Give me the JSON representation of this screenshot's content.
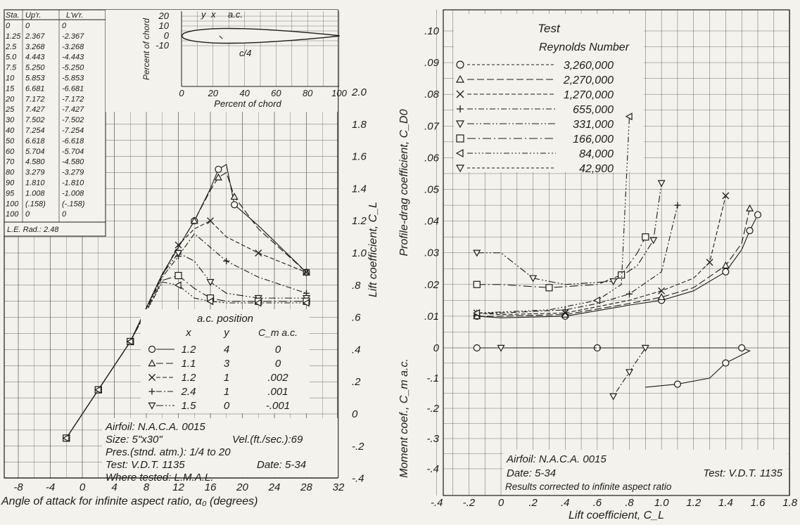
{
  "chart_data": [
    {
      "type": "line",
      "xlabel": "Angle of attack for infinite aspect ratio, α₀ (degrees)",
      "ylabel": "Lift coefficient, C_L",
      "x_ticks": [
        "-8",
        "-4",
        "0",
        "4",
        "8",
        "12",
        "16",
        "20",
        "24",
        "28",
        "32"
      ],
      "y_ticks": [
        "-.4",
        "-.2",
        "0",
        ".2",
        ".4",
        ".6",
        ".8",
        "1.0",
        "1.2",
        "1.4",
        "1.6",
        "1.8",
        "2.0"
      ],
      "xlim": [
        -8,
        32
      ],
      "ylim": [
        -0.4,
        2.0
      ],
      "ac_table": {
        "title": "a.c. position",
        "headers": [
          "x",
          "y",
          "C_m a.c."
        ],
        "rows": [
          [
            "1.2",
            "4",
            "0"
          ],
          [
            "1.1",
            "3",
            "0"
          ],
          [
            "1.2",
            "1",
            ".002"
          ],
          [
            "2.4",
            "1",
            ".001"
          ],
          [
            "1.5",
            "0",
            "-.001"
          ]
        ]
      },
      "notes": [
        "Airfoil: N.A.C.A. 0015",
        "Size: 5\"x30\"",
        "Vel.(ft./sec.):69",
        "Pres.(stnd. atm.): 1/4 to 20",
        "Test: V.D.T. 1135",
        "Date: 5-34",
        "Where tested: L.M.A.L."
      ],
      "series": [
        {
          "name": "3,260,000",
          "marker": "circle",
          "x": [
            -2,
            0,
            2,
            4,
            6,
            10,
            14,
            16,
            17,
            18,
            19,
            22,
            28
          ],
          "y": [
            -0.15,
            0,
            0.15,
            0.3,
            0.45,
            0.87,
            1.2,
            1.4,
            1.52,
            1.55,
            1.3,
            1.17,
            0.88
          ]
        },
        {
          "name": "2,270,000",
          "marker": "triangle-up",
          "x": [
            -2,
            0,
            2,
            4,
            6,
            10,
            14,
            16,
            17,
            18,
            19,
            22,
            28
          ],
          "y": [
            -0.15,
            0,
            0.15,
            0.3,
            0.45,
            0.87,
            1.2,
            1.39,
            1.47,
            1.5,
            1.35,
            1.15,
            0.88
          ]
        },
        {
          "name": "1,270,000",
          "marker": "x",
          "x": [
            -2,
            0,
            2,
            4,
            6,
            10,
            12,
            14,
            16,
            18,
            22,
            28
          ],
          "y": [
            -0.15,
            0,
            0.15,
            0.3,
            0.45,
            0.86,
            1.05,
            1.15,
            1.2,
            1.1,
            1.0,
            0.88
          ]
        },
        {
          "name": "655,000",
          "marker": "plus",
          "x": [
            -2,
            0,
            2,
            4,
            6,
            10,
            12,
            14,
            18,
            22,
            28
          ],
          "y": [
            -0.15,
            0,
            0.15,
            0.3,
            0.45,
            0.85,
            0.98,
            1.12,
            0.95,
            0.85,
            0.75
          ]
        },
        {
          "name": "331,000",
          "marker": "triangle-down",
          "x": [
            -2,
            0,
            2,
            4,
            6,
            10,
            12,
            14,
            16,
            18,
            22,
            28
          ],
          "y": [
            -0.15,
            0,
            0.15,
            0.3,
            0.45,
            0.87,
            1.0,
            0.95,
            0.82,
            0.75,
            0.72,
            0.72
          ]
        },
        {
          "name": "166,000",
          "marker": "square",
          "x": [
            -2,
            0,
            2,
            4,
            6,
            10,
            12,
            14,
            16,
            18,
            22,
            28
          ],
          "y": [
            -0.15,
            0,
            0.15,
            0.3,
            0.45,
            0.83,
            0.86,
            0.78,
            0.72,
            0.7,
            0.7,
            0.7
          ]
        },
        {
          "name": "84,000",
          "marker": "triangle-left",
          "x": [
            -2,
            0,
            2,
            4,
            6,
            10,
            12,
            14,
            16,
            18,
            22,
            28
          ],
          "y": [
            -0.15,
            0,
            0.15,
            0.3,
            0.45,
            0.82,
            0.8,
            0.72,
            0.7,
            0.69,
            0.69,
            0.69
          ]
        }
      ]
    },
    {
      "type": "line",
      "title": "Test",
      "legend_title": "Reynolds Number",
      "xlabel": "Lift coefficient, C_L",
      "ylabel": "Profile-drag coefficient, C_D0",
      "ylabel2": "Moment coef., C_m a.c.",
      "x_ticks": [
        "-.4",
        "-.2",
        "0",
        ".2",
        ".4",
        ".6",
        ".8",
        "1.0",
        "1.2",
        "1.4",
        "1.6",
        "1.8"
      ],
      "y_ticks": [
        ".10",
        ".09",
        ".08",
        ".07",
        ".06",
        ".05",
        ".04",
        ".03",
        ".02",
        ".01",
        "0",
        "-.1",
        "-.2",
        "-.3",
        "-.4"
      ],
      "xlim": [
        -0.4,
        1.8
      ],
      "ylim": [
        -0.4,
        0.1
      ],
      "legend": [
        {
          "marker": "circle",
          "label": "3,260,000"
        },
        {
          "marker": "triangle-up",
          "label": "2,270,000"
        },
        {
          "marker": "x",
          "label": "1,270,000"
        },
        {
          "marker": "plus",
          "label": "655,000"
        },
        {
          "marker": "triangle-down",
          "label": "331,000"
        },
        {
          "marker": "square",
          "label": "166,000"
        },
        {
          "marker": "triangle-left",
          "label": "84,000"
        },
        {
          "marker": "triangle-down",
          "label": "42,900"
        }
      ],
      "notes": [
        "Airfoil: N.A.C.A. 0015",
        "Date: 5-34",
        "Test: V.D.T. 1135",
        "Results corrected to infinite aspect ratio"
      ],
      "drag_series": [
        {
          "name": "3,260,000",
          "x": [
            -0.15,
            0,
            0.4,
            0.8,
            1.0,
            1.2,
            1.4,
            1.5,
            1.55,
            1.6
          ],
          "y": [
            0.01,
            0.0095,
            0.01,
            0.0135,
            0.015,
            0.018,
            0.024,
            0.031,
            0.037,
            0.042
          ]
        },
        {
          "name": "2,270,000",
          "x": [
            -0.15,
            0,
            0.4,
            0.8,
            1.0,
            1.2,
            1.4,
            1.5,
            1.55
          ],
          "y": [
            0.01,
            0.01,
            0.0105,
            0.014,
            0.016,
            0.019,
            0.026,
            0.033,
            0.044
          ]
        },
        {
          "name": "1,270,000",
          "x": [
            -0.15,
            0,
            0.4,
            0.8,
            1.0,
            1.2,
            1.3,
            1.4
          ],
          "y": [
            0.011,
            0.0105,
            0.011,
            0.015,
            0.018,
            0.022,
            0.027,
            0.048
          ]
        },
        {
          "name": "655,000",
          "x": [
            -0.15,
            0,
            0.4,
            0.6,
            0.8,
            1.0,
            1.1
          ],
          "y": [
            0.011,
            0.011,
            0.012,
            0.014,
            0.017,
            0.024,
            0.045
          ]
        },
        {
          "name": "331,000",
          "x": [
            -0.15,
            0,
            0.2,
            0.4,
            0.7,
            0.85,
            0.95,
            1.0
          ],
          "y": [
            0.03,
            0.03,
            0.022,
            0.02,
            0.021,
            0.026,
            0.034,
            0.052
          ]
        },
        {
          "name": "166,000",
          "x": [
            -0.15,
            0,
            0.3,
            0.6,
            0.75,
            0.85,
            0.9
          ],
          "y": [
            0.02,
            0.02,
            0.019,
            0.02,
            0.023,
            0.03,
            0.035
          ]
        },
        {
          "name": "84,000",
          "x": [
            -0.15,
            0.3,
            0.6,
            0.75,
            0.8
          ],
          "y": [
            0.011,
            0.012,
            0.015,
            0.02,
            0.073
          ]
        }
      ],
      "moment_series": [
        {
          "name": "3,260,000",
          "x": [
            -0.15,
            0,
            0.6,
            1.2,
            1.5,
            1.55,
            1.4,
            1.3,
            1.1,
            0.9
          ],
          "y": [
            0,
            0,
            0,
            0,
            0,
            -0.01,
            -0.05,
            -0.1,
            -0.12,
            -0.13
          ]
        },
        {
          "name": "331,000",
          "x": [
            0,
            0.6,
            0.9,
            0.85,
            0.8,
            0.75,
            0.7
          ],
          "y": [
            0,
            0,
            0,
            -0.04,
            -0.08,
            -0.12,
            -0.16
          ]
        }
      ]
    }
  ],
  "section": {
    "profile": {
      "ylabel": "Percent of chord",
      "xlabel": "Percent of chord",
      "x_ticks": [
        "0",
        "20",
        "40",
        "60",
        "80",
        "100"
      ],
      "y_ticks": [
        "20",
        "10",
        "0",
        "-10"
      ],
      "annotations": [
        "y",
        "x",
        "a.c.",
        "c/4"
      ]
    },
    "ordinates": {
      "headers": [
        "Sta.",
        "Up'r.",
        "L'w'r."
      ],
      "rows": [
        [
          "0",
          "0",
          "0"
        ],
        [
          "1.25",
          "2.367",
          "-2.367"
        ],
        [
          "2.5",
          "3.268",
          "-3.268"
        ],
        [
          "5.0",
          "4.443",
          "-4.443"
        ],
        [
          "7.5",
          "5.250",
          "-5.250"
        ],
        [
          "10",
          "5.853",
          "-5.853"
        ],
        [
          "15",
          "6.681",
          "-6.681"
        ],
        [
          "20",
          "7.172",
          "-7.172"
        ],
        [
          "25",
          "7.427",
          "-7.427"
        ],
        [
          "30",
          "7.502",
          "-7.502"
        ],
        [
          "40",
          "7.254",
          "-7.254"
        ],
        [
          "50",
          "6.618",
          "-6.618"
        ],
        [
          "60",
          "5.704",
          "-5.704"
        ],
        [
          "70",
          "4.580",
          "-4.580"
        ],
        [
          "80",
          "3.279",
          "-3.279"
        ],
        [
          "90",
          "1.810",
          "-1.810"
        ],
        [
          "95",
          "1.008",
          "-1.008"
        ],
        [
          "100",
          "(.158)",
          "(-.158)"
        ],
        [
          "100",
          "0",
          "0"
        ]
      ],
      "le_radius": "L.E. Rad.: 2.48"
    }
  }
}
